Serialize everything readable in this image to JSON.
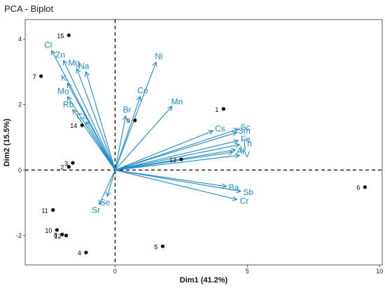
{
  "chart_data": {
    "type": "scatter",
    "subtype": "pca-biplot",
    "title": "PCA - Biplot",
    "xlabel": "Dim1 (41.2%)",
    "ylabel": "Dim2 (15.5%)",
    "xlim": [
      -3.4,
      10.1
    ],
    "ylim": [
      -2.9,
      4.6
    ],
    "x_ticks": [
      0,
      5,
      10
    ],
    "y_ticks": [
      -2,
      0,
      2,
      4
    ],
    "grid": false,
    "reference_lines": {
      "x": 0,
      "y": 0,
      "style": "dashed"
    },
    "arrow_color": "#1f8bc9",
    "point_color": "#000000",
    "observations": [
      {
        "label": "1",
        "x": 4.1,
        "y": 1.87
      },
      {
        "label": "2",
        "x": -1.75,
        "y": 0.1
      },
      {
        "label": "3",
        "x": -1.6,
        "y": 0.22
      },
      {
        "label": "4",
        "x": -1.1,
        "y": -2.52
      },
      {
        "label": "5",
        "x": 1.8,
        "y": -2.33
      },
      {
        "label": "6",
        "x": 9.45,
        "y": -0.52
      },
      {
        "label": "7",
        "x": -2.8,
        "y": 2.87
      },
      {
        "label": "8",
        "x": -2.0,
        "y": -1.97
      },
      {
        "label": "9",
        "x": 0.75,
        "y": 1.52
      },
      {
        "label": "10",
        "x": -2.2,
        "y": -1.83
      },
      {
        "label": "11",
        "x": -2.35,
        "y": -1.22
      },
      {
        "label": "12",
        "x": -1.85,
        "y": -2.0
      },
      {
        "label": "13",
        "x": 2.5,
        "y": 0.33
      },
      {
        "label": "14",
        "x": -1.25,
        "y": 1.37
      },
      {
        "label": "15",
        "x": -1.75,
        "y": 4.12
      }
    ],
    "variables": [
      {
        "label": "Cl",
        "x": -2.4,
        "y": 3.65
      },
      {
        "label": "Zn",
        "x": -1.95,
        "y": 3.35
      },
      {
        "label": "Mg",
        "x": -1.45,
        "y": 3.1
      },
      {
        "label": "Na",
        "x": -1.1,
        "y": 3.0
      },
      {
        "label": "K",
        "x": -1.8,
        "y": 2.65
      },
      {
        "label": "Mo",
        "x": -1.8,
        "y": 2.25
      },
      {
        "label": "Rb",
        "x": -1.6,
        "y": 1.85
      },
      {
        "label": "Ca",
        "x": -1.1,
        "y": 1.48
      },
      {
        "label": "Co",
        "x": 0.95,
        "y": 2.25
      },
      {
        "label": "Ni",
        "x": 1.55,
        "y": 3.3
      },
      {
        "label": "Mn",
        "x": 2.15,
        "y": 1.95
      },
      {
        "label": "Br",
        "x": 0.4,
        "y": 1.65
      },
      {
        "label": "Cs",
        "x": 3.7,
        "y": 1.2
      },
      {
        "label": "Sc",
        "x": 4.65,
        "y": 1.25
      },
      {
        "label": "Sm",
        "x": 4.6,
        "y": 1.15
      },
      {
        "label": "Fe",
        "x": 4.65,
        "y": 0.9
      },
      {
        "label": "Th",
        "x": 4.7,
        "y": 0.78
      },
      {
        "label": "U",
        "x": 4.55,
        "y": 0.62
      },
      {
        "label": "Al",
        "x": 4.45,
        "y": 0.55
      },
      {
        "label": "V",
        "x": 4.7,
        "y": 0.45
      },
      {
        "label": "Ba",
        "x": 4.2,
        "y": -0.5
      },
      {
        "label": "Sb",
        "x": 4.75,
        "y": -0.65
      },
      {
        "label": "Cr",
        "x": 4.6,
        "y": -0.9
      },
      {
        "label": "Se",
        "x": -0.3,
        "y": -0.8
      },
      {
        "label": "Sr",
        "x": -0.6,
        "y": -1.05
      }
    ]
  }
}
